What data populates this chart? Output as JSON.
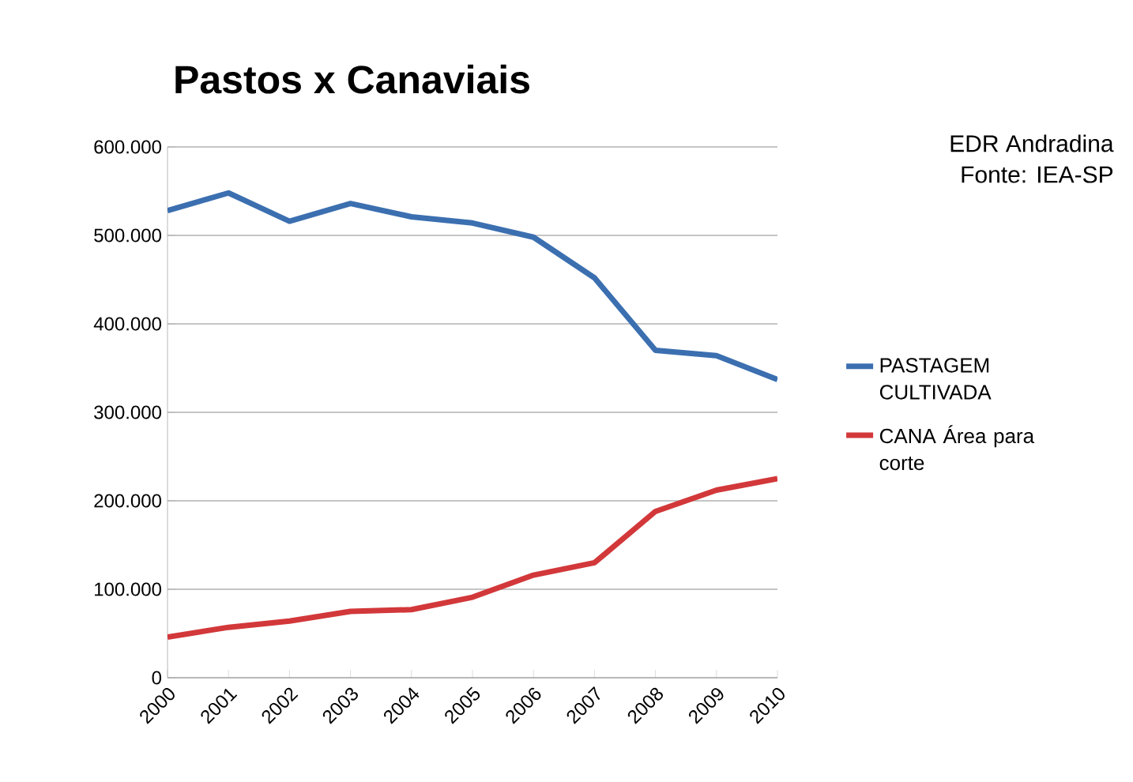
{
  "chart_data": {
    "type": "line",
    "title": "Pastos x Canaviais",
    "annotations": [
      "EDR Andradina",
      "Fonte: IEA-SP"
    ],
    "categories": [
      "2000",
      "2001",
      "2002",
      "2003",
      "2004",
      "2005",
      "2006",
      "2007",
      "2008",
      "2009",
      "2010"
    ],
    "series": [
      {
        "name": "PASTAGEM CULTIVADA",
        "color": "#3b6fb0",
        "values": [
          528000,
          548000,
          516000,
          536000,
          521000,
          514000,
          498000,
          452000,
          370000,
          364000,
          337000
        ]
      },
      {
        "name": "CANA Área para corte",
        "color": "#d2383a",
        "values": [
          46000,
          57000,
          64000,
          75000,
          77000,
          91000,
          116000,
          130000,
          188000,
          212000,
          225000
        ]
      }
    ],
    "ylim": [
      0,
      600000
    ],
    "yticks": [
      {
        "value": 0,
        "label": "0"
      },
      {
        "value": 100000,
        "label": "100.000"
      },
      {
        "value": 200000,
        "label": "200.000"
      },
      {
        "value": 300000,
        "label": "300.000"
      },
      {
        "value": 400000,
        "label": "400.000"
      },
      {
        "value": 500000,
        "label": "500.000"
      },
      {
        "value": 600000,
        "label": "600.000"
      }
    ],
    "grid": "y",
    "legend": "right",
    "marker": "none",
    "line_style": "solid"
  }
}
